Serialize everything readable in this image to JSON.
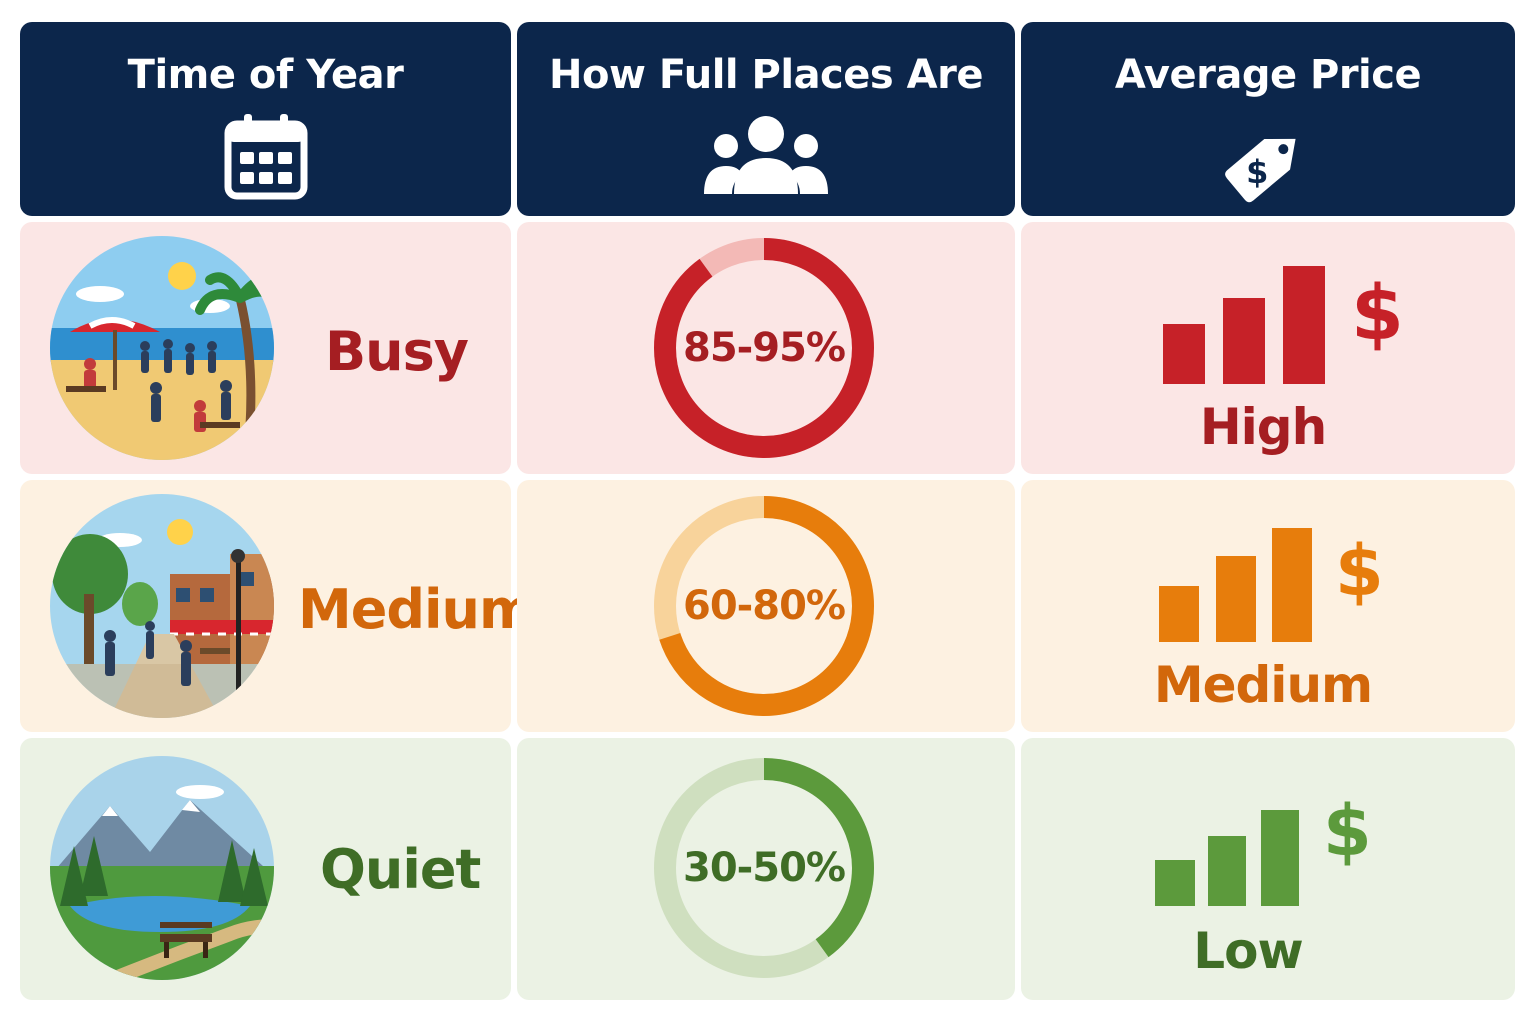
{
  "headers": {
    "time": {
      "label": "Time of Year",
      "icon": "calendar-icon"
    },
    "full": {
      "label": "How Full Places Are",
      "icon": "people-icon"
    },
    "price": {
      "label": "Average Price",
      "icon": "price-tag-icon"
    }
  },
  "rows": [
    {
      "season": "Busy",
      "occupancy": "85-95%",
      "occupancy_fill": 0.9,
      "price_symbol": "$",
      "price_level": "High",
      "color": "#c62128",
      "track_color": "#f3b9b6",
      "text_color": "#a51e22",
      "scene_icon": "beach-scene-icon"
    },
    {
      "season": "Medium",
      "occupancy": "60-80%",
      "occupancy_fill": 0.7,
      "price_symbol": "$",
      "price_level": "Medium",
      "color": "#e77d0c",
      "track_color": "#f8d39b",
      "text_color": "#d2670b",
      "scene_icon": "town-street-scene-icon"
    },
    {
      "season": "Quiet",
      "occupancy": "30-50%",
      "occupancy_fill": 0.4,
      "price_symbol": "$",
      "price_level": "Low",
      "color": "#5c9a3c",
      "track_color": "#cfdfbf",
      "text_color": "#3f6d26",
      "scene_icon": "lake-mountain-scene-icon"
    }
  ]
}
